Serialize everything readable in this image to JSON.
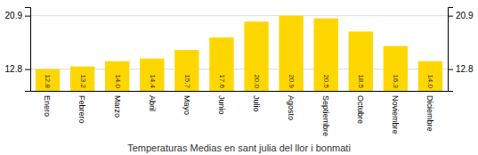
{
  "chart_data": {
    "type": "bar",
    "title": "Temperaturas Medias en sant julia del llor i bonmati",
    "categories": [
      "Enero",
      "Febrero",
      "Marzo",
      "Abril",
      "Mayo",
      "Junio",
      "Julio",
      "Agosto",
      "Septiembre",
      "Octubre",
      "Noviembre",
      "Diciembre"
    ],
    "values": [
      12.8,
      13.2,
      14.0,
      14.4,
      15.7,
      17.6,
      20.0,
      20.9,
      20.5,
      18.5,
      16.3,
      14.0
    ],
    "value_labels": [
      "12.8",
      "13.2",
      "14.0",
      "14.4",
      "15.7",
      "17.6",
      "20.0",
      "20.9",
      "20.5",
      "18.5",
      "16.3",
      "14.0"
    ],
    "color": "#FFD700",
    "ylim": [
      9.5,
      22.2
    ],
    "yticks": [
      12.8,
      20.9
    ],
    "grid": true,
    "data_labels": true
  }
}
